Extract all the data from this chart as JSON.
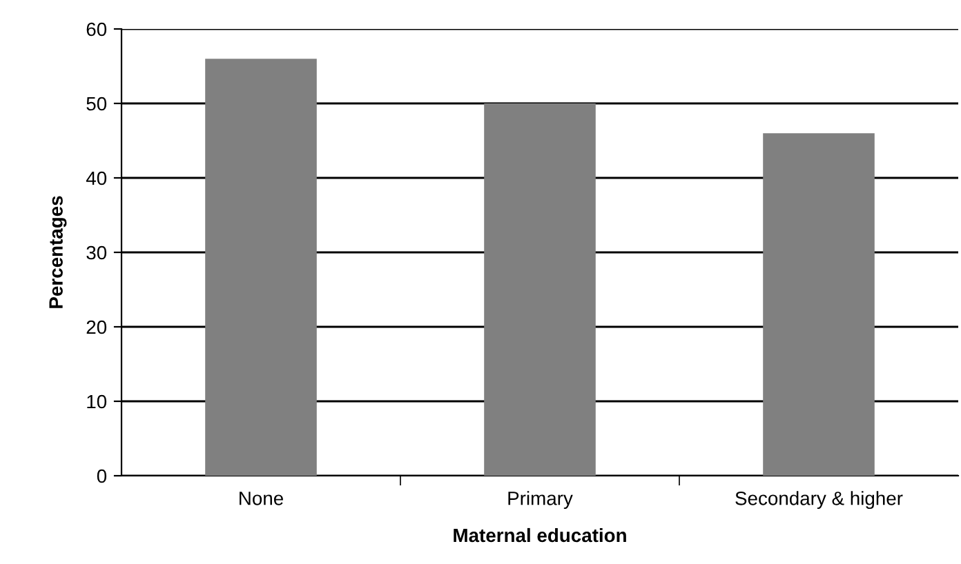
{
  "chart_data": {
    "type": "bar",
    "xlabel": "Maternal education",
    "ylabel": "Percentages",
    "categories": [
      "None",
      "Primary",
      "Secondary & higher"
    ],
    "values": [
      56,
      50,
      46
    ],
    "color": "#808080",
    "ylim": [
      0,
      60
    ],
    "yticks": [
      0,
      10,
      20,
      30,
      40,
      50,
      60
    ],
    "grid": "y"
  }
}
